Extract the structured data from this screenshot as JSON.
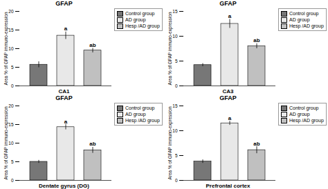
{
  "chart_data": [
    {
      "type": "bar",
      "title": "GFAP",
      "xlabel": "CA1",
      "ylabel": "Area % of GFAP immuno-expression",
      "categories": [
        "Control group",
        "AD group",
        "Hesp /AD group"
      ],
      "values": [
        5.7,
        13.5,
        9.5
      ],
      "errors": [
        0.8,
        1.0,
        0.6
      ],
      "annotations": [
        null,
        "a",
        "ab"
      ],
      "colors": [
        "#777777",
        "#e8e8e8",
        "#c0c0c0"
      ],
      "ylim": [
        0,
        20
      ],
      "yticks": [
        0,
        5,
        10,
        15,
        20
      ],
      "legend": "right",
      "tick_labels": "y"
    },
    {
      "type": "bar",
      "title": "GFAP",
      "xlabel": "CA3",
      "ylabel": "Area % of GFAP immuno-expression",
      "categories": [
        "Control group",
        "AD group",
        "Hesp /AD group"
      ],
      "values": [
        4.2,
        12.5,
        8.0
      ],
      "errors": [
        0.3,
        0.9,
        0.5
      ],
      "annotations": [
        null,
        "a",
        "ab"
      ],
      "colors": [
        "#777777",
        "#e8e8e8",
        "#c0c0c0"
      ],
      "ylim": [
        0,
        15
      ],
      "yticks": [
        0,
        5,
        10,
        15
      ],
      "legend": "right",
      "tick_labels": "y"
    },
    {
      "type": "bar",
      "title": "GFAP",
      "xlabel": "Dentate gyrus (DG)",
      "ylabel": "Area % of GFAP immuno-expression",
      "categories": [
        "Control group",
        "AD group",
        "Hesp /AD group"
      ],
      "values": [
        5.0,
        14.3,
        8.1
      ],
      "errors": [
        0.4,
        0.7,
        0.8
      ],
      "annotations": [
        null,
        "a",
        "ab"
      ],
      "colors": [
        "#777777",
        "#e8e8e8",
        "#c0c0c0"
      ],
      "ylim": [
        0,
        20
      ],
      "yticks": [
        0,
        5,
        10,
        15,
        20
      ],
      "legend": "right",
      "tick_labels": "y"
    },
    {
      "type": "bar",
      "title": "GFAP",
      "xlabel": "Prefrontal cortex",
      "ylabel": "Area % of GFAP immuno-expression",
      "categories": [
        "Control group",
        "AD group",
        "Hesp /AD group"
      ],
      "values": [
        3.8,
        11.5,
        6.1
      ],
      "errors": [
        0.35,
        0.4,
        0.7
      ],
      "annotations": [
        null,
        "a",
        "ab"
      ],
      "colors": [
        "#777777",
        "#e8e8e8",
        "#c0c0c0"
      ],
      "ylim": [
        0,
        15
      ],
      "yticks": [
        0,
        5,
        10,
        15
      ],
      "legend": "right",
      "tick_labels": "y"
    }
  ]
}
